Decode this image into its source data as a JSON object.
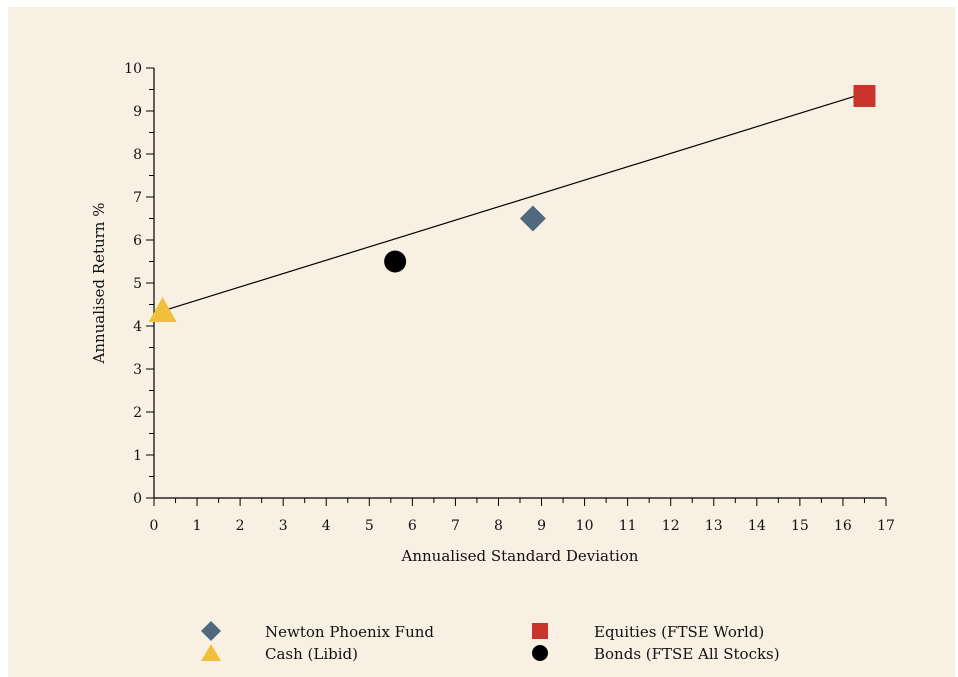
{
  "chart_data": {
    "type": "scatter",
    "title": "",
    "xlabel": "Annualised Standard Deviation",
    "ylabel": "Annualised Return %",
    "xlim": [
      0,
      17
    ],
    "ylim": [
      0,
      10
    ],
    "x_ticks": [
      "0",
      "1",
      "2",
      "3",
      "4",
      "5",
      "6",
      "7",
      "8",
      "9",
      "10",
      "11",
      "12",
      "13",
      "14",
      "15",
      "16",
      "17"
    ],
    "y_ticks": [
      "0",
      "1",
      "2",
      "3",
      "4",
      "5",
      "6",
      "7",
      "8",
      "9",
      "10"
    ],
    "grid": false,
    "legend_position": "bottom",
    "series": [
      {
        "name": "Newton Phoenix Fund",
        "x": 8.8,
        "y": 6.5,
        "marker": "diamond",
        "color": "#50697f"
      },
      {
        "name": "Equities (FTSE World)",
        "x": 16.5,
        "y": 9.35,
        "marker": "square",
        "color": "#c8332b"
      },
      {
        "name": "Cash (Libid)",
        "x": 0.2,
        "y": 4.35,
        "marker": "triangle",
        "color": "#f0c03c"
      },
      {
        "name": "Bonds (FTSE All Stocks)",
        "x": 5.6,
        "y": 5.5,
        "marker": "circle",
        "color": "#000000"
      }
    ],
    "trendline": {
      "x": [
        0.2,
        16.3
      ],
      "y": [
        4.35,
        9.35
      ]
    }
  }
}
